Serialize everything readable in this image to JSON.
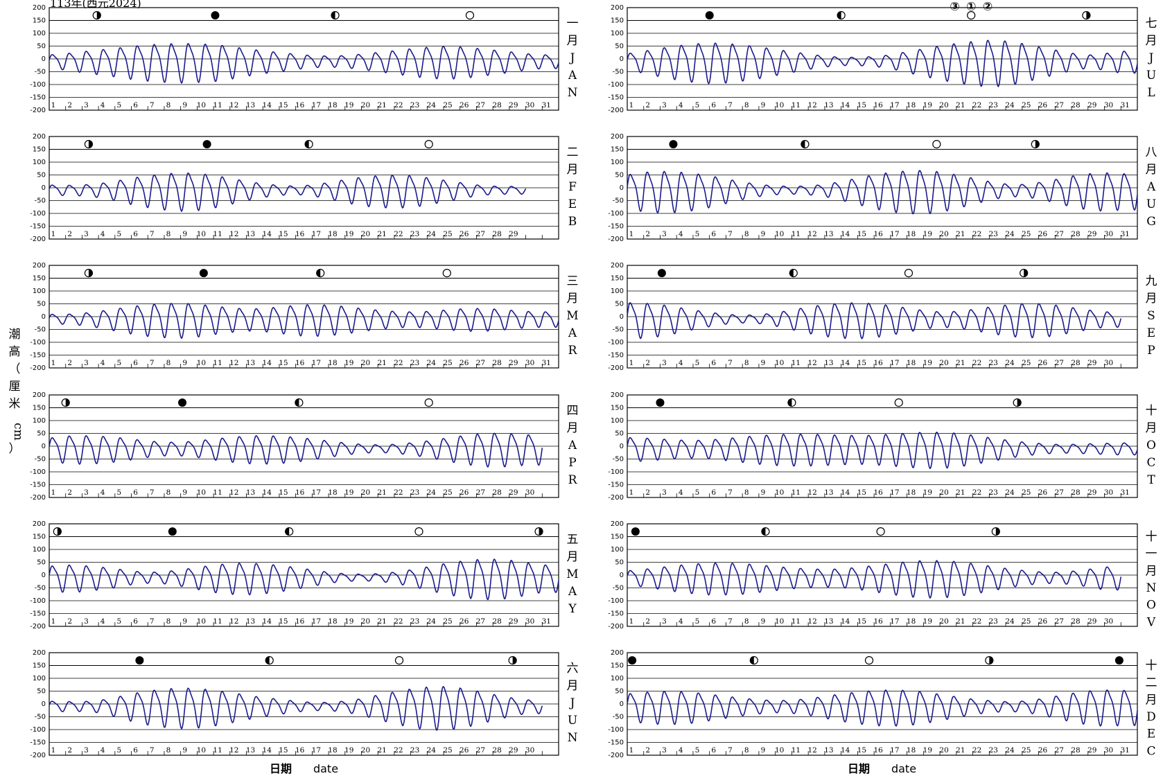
{
  "page": {
    "top_title": "113年(西元2024)",
    "y_axis_label_chars": [
      "潮",
      "高",
      "（",
      "厘",
      "米",
      "",
      "cm",
      "）"
    ],
    "x_axis_label": "日期",
    "x_axis_label_en": "date",
    "typhoon_marks": [
      "③",
      "①",
      "②"
    ]
  },
  "colors": {
    "tide": "#1a1a8c",
    "axis": "#000000",
    "grid": "#000000"
  },
  "chart_data": {
    "type": "line",
    "ylim": [
      -200,
      200
    ],
    "y_ticks": [
      "200",
      "150",
      "100",
      "50",
      "0",
      "-50",
      "-100",
      "-150",
      "-200"
    ],
    "tide_line_legend": "",
    "moon_phase_symbols": {
      "new": "●",
      "first_quarter": "◑",
      "full": "○",
      "last_quarter": "◐"
    },
    "months": [
      {
        "zh": [
          "一",
          "月"
        ],
        "en": [
          "J",
          "A",
          "N"
        ],
        "days": 31,
        "phases": [
          {
            "day": 3.9,
            "type": "first_quarter"
          },
          {
            "day": 11.1,
            "type": "new"
          },
          {
            "day": 18.4,
            "type": "last_quarter"
          },
          {
            "day": 26.6,
            "type": "full"
          }
        ],
        "amp": [
          25,
          30,
          38,
          45,
          52,
          60,
          66,
          70,
          72,
          70,
          68,
          60,
          50,
          42,
          35,
          28,
          22,
          20,
          22,
          28,
          35,
          42,
          50,
          56,
          60,
          58,
          52,
          45,
          38,
          30,
          25
        ],
        "tide_x": [],
        "tide_y": []
      },
      {
        "zh": [
          "二",
          "月"
        ],
        "en": [
          "F",
          "E",
          "B"
        ],
        "days": 29,
        "phases": [
          {
            "day": 3.4,
            "type": "first_quarter"
          },
          {
            "day": 10.6,
            "type": "new"
          },
          {
            "day": 16.8,
            "type": "last_quarter"
          },
          {
            "day": 24.1,
            "type": "full"
          }
        ],
        "amp": [
          20,
          18,
          20,
          25,
          35,
          48,
          58,
          66,
          70,
          68,
          60,
          48,
          35,
          25,
          18,
          15,
          20,
          30,
          42,
          52,
          58,
          60,
          58,
          50,
          40,
          30,
          20,
          15,
          14
        ],
        "tide_x": [],
        "tide_y": []
      },
      {
        "zh": [
          "三",
          "月"
        ],
        "en": [
          "M",
          "A",
          "R"
        ],
        "days": 31,
        "phases": [
          {
            "day": 3.4,
            "type": "first_quarter"
          },
          {
            "day": 10.4,
            "type": "new"
          },
          {
            "day": 17.5,
            "type": "last_quarter"
          },
          {
            "day": 25.2,
            "type": "full"
          }
        ],
        "amp": [
          18,
          18,
          22,
          30,
          40,
          50,
          58,
          62,
          64,
          60,
          52,
          45,
          40,
          42,
          48,
          55,
          58,
          56,
          50,
          42,
          35,
          30,
          28,
          30,
          35,
          40,
          42,
          40,
          35,
          30,
          28
        ],
        "tide_x": [],
        "tide_y": []
      },
      {
        "zh": [
          "四",
          "月"
        ],
        "en": [
          "A",
          "P",
          "R"
        ],
        "days": 30,
        "phases": [
          {
            "day": 2.0,
            "type": "first_quarter"
          },
          {
            "day": 9.1,
            "type": "new"
          },
          {
            "day": 16.2,
            "type": "last_quarter"
          },
          {
            "day": 24.1,
            "type": "full"
          }
        ],
        "amp": [
          42,
          50,
          52,
          50,
          45,
          38,
          30,
          25,
          25,
          30,
          38,
          45,
          50,
          52,
          50,
          45,
          38,
          30,
          22,
          16,
          14,
          16,
          22,
          30,
          40,
          50,
          58,
          62,
          60,
          55
        ],
        "tide_x": [],
        "tide_y": []
      },
      {
        "zh": [
          "五",
          "月"
        ],
        "en": [
          "M",
          "A",
          "Y"
        ],
        "days": 31,
        "phases": [
          {
            "day": 1.5,
            "type": "first_quarter"
          },
          {
            "day": 8.5,
            "type": "new"
          },
          {
            "day": 15.6,
            "type": "last_quarter"
          },
          {
            "day": 23.5,
            "type": "full"
          },
          {
            "day": 30.8,
            "type": "first_quarter"
          }
        ],
        "amp": [
          45,
          50,
          48,
          42,
          35,
          25,
          20,
          22,
          30,
          40,
          50,
          56,
          58,
          55,
          48,
          40,
          30,
          20,
          14,
          12,
          14,
          20,
          30,
          42,
          55,
          65,
          72,
          74,
          70,
          60,
          50
        ],
        "tide_x": [],
        "tide_y": []
      },
      {
        "zh": [
          "六",
          "月"
        ],
        "en": [
          "J",
          "U",
          "N"
        ],
        "days": 30,
        "phases": [
          {
            "day": 6.5,
            "type": "new"
          },
          {
            "day": 14.4,
            "type": "last_quarter"
          },
          {
            "day": 22.3,
            "type": "full"
          },
          {
            "day": 29.2,
            "type": "first_quarter"
          }
        ],
        "amp": [
          20,
          18,
          18,
          22,
          35,
          50,
          62,
          70,
          74,
          72,
          66,
          56,
          45,
          35,
          28,
          20,
          15,
          15,
          20,
          30,
          45,
          58,
          70,
          78,
          80,
          74,
          62,
          48,
          35,
          25
        ],
        "tide_x": [],
        "tide_y": []
      },
      {
        "zh": [
          "七",
          "月"
        ],
        "en": [
          "J",
          "U",
          "L"
        ],
        "days": 31,
        "phases": [
          {
            "day": 6.0,
            "type": "new"
          },
          {
            "day": 14.0,
            "type": "last_quarter"
          },
          {
            "day": 21.9,
            "type": "full"
          },
          {
            "day": 28.9,
            "type": "first_quarter"
          }
        ],
        "amp": [
          30,
          40,
          52,
          62,
          70,
          74,
          72,
          66,
          58,
          48,
          38,
          28,
          20,
          15,
          15,
          18,
          25,
          38,
          50,
          62,
          72,
          80,
          85,
          82,
          72,
          58,
          45,
          32,
          24,
          30,
          40
        ],
        "tide_x": [],
        "tide_y": []
      },
      {
        "zh": [
          "八",
          "月"
        ],
        "en": [
          "A",
          "U",
          "G"
        ],
        "days": 31,
        "phases": [
          {
            "day": 3.8,
            "type": "new"
          },
          {
            "day": 11.8,
            "type": "last_quarter"
          },
          {
            "day": 19.8,
            "type": "full"
          },
          {
            "day": 25.8,
            "type": "first_quarter"
          }
        ],
        "amp": [
          62,
          72,
          76,
          74,
          68,
          58,
          45,
          32,
          22,
          16,
          14,
          16,
          22,
          34,
          48,
          62,
          72,
          78,
          80,
          74,
          62,
          48,
          34,
          24,
          22,
          30,
          42,
          56,
          66,
          70,
          66
        ],
        "tide_x": [],
        "tide_y": []
      },
      {
        "zh": [
          "九",
          "月"
        ],
        "en": [
          "S",
          "E",
          "P"
        ],
        "days": 30,
        "phases": [
          {
            "day": 3.1,
            "type": "new"
          },
          {
            "day": 11.1,
            "type": "last_quarter"
          },
          {
            "day": 18.1,
            "type": "full"
          },
          {
            "day": 25.1,
            "type": "first_quarter"
          }
        ],
        "amp": [
          66,
          64,
          58,
          48,
          36,
          26,
          18,
          14,
          16,
          24,
          36,
          48,
          58,
          64,
          66,
          62,
          54,
          44,
          34,
          28,
          30,
          38,
          48,
          56,
          62,
          62,
          56,
          46,
          36,
          28
        ],
        "tide_x": [],
        "tide_y": []
      },
      {
        "zh": [
          "十",
          "月"
        ],
        "en": [
          "O",
          "C",
          "T"
        ],
        "days": 31,
        "phases": [
          {
            "day": 3.0,
            "type": "new"
          },
          {
            "day": 11.0,
            "type": "last_quarter"
          },
          {
            "day": 17.5,
            "type": "full"
          },
          {
            "day": 24.7,
            "type": "first_quarter"
          }
        ],
        "amp": [
          44,
          42,
          38,
          34,
          32,
          34,
          40,
          46,
          52,
          56,
          58,
          58,
          56,
          54,
          52,
          54,
          58,
          62,
          66,
          66,
          62,
          54,
          44,
          34,
          26,
          20,
          16,
          16,
          18,
          20,
          22
        ],
        "tide_x": [],
        "tide_y": []
      },
      {
        "zh": [
          "十",
          "一",
          "月"
        ],
        "en": [
          "N",
          "O",
          "V"
        ],
        "days": 30,
        "phases": [
          {
            "day": 1.5,
            "type": "new"
          },
          {
            "day": 9.4,
            "type": "last_quarter"
          },
          {
            "day": 16.4,
            "type": "full"
          },
          {
            "day": 23.4,
            "type": "first_quarter"
          }
        ],
        "amp": [
          26,
          32,
          40,
          48,
          54,
          58,
          58,
          56,
          50,
          44,
          38,
          34,
          32,
          34,
          40,
          48,
          56,
          64,
          68,
          68,
          64,
          56,
          46,
          36,
          28,
          22,
          20,
          24,
          32,
          42
        ],
        "tide_x": [],
        "tide_y": []
      },
      {
        "zh": [
          "十",
          "二",
          "月"
        ],
        "en": [
          "D",
          "E",
          "C"
        ],
        "days": 31,
        "phases": [
          {
            "day": 1.3,
            "type": "new"
          },
          {
            "day": 8.7,
            "type": "last_quarter"
          },
          {
            "day": 15.7,
            "type": "full"
          },
          {
            "day": 23.0,
            "type": "first_quarter"
          },
          {
            "day": 30.9,
            "type": "new"
          }
        ],
        "amp": [
          50,
          56,
          60,
          60,
          56,
          48,
          40,
          32,
          26,
          22,
          24,
          30,
          40,
          50,
          58,
          64,
          66,
          64,
          58,
          48,
          38,
          28,
          22,
          18,
          20,
          28,
          40,
          52,
          62,
          66,
          64
        ],
        "tide_x": [],
        "tide_y": []
      }
    ]
  }
}
